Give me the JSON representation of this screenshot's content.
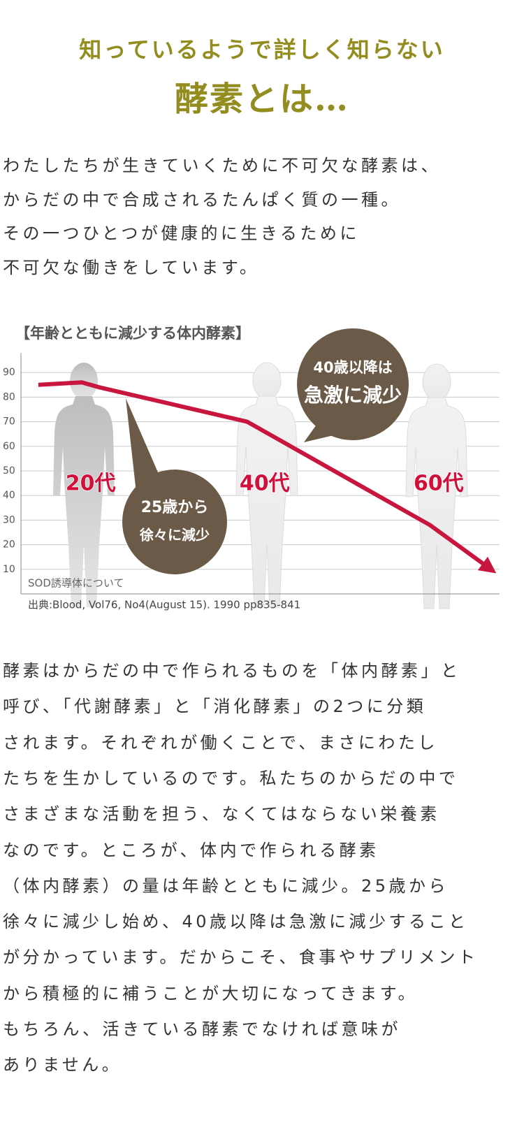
{
  "header": {
    "title": "知っているようで詳しく知らない",
    "subtitle": "酵素とは…"
  },
  "intro": {
    "lines": [
      "わたしたちが生きていくために不可欠な酵素は、",
      "からだの中で合成されるたんぱく質の一種。",
      "その一つひとつが健康的に生きるために",
      "不可欠な働きをしています。"
    ]
  },
  "chart_data": {
    "type": "line",
    "title": "【年齢とともに減少する体内酵素】",
    "x": [
      14,
      19,
      21,
      38,
      39.5,
      59,
      66
    ],
    "xlim": [
      12,
      67
    ],
    "series": [
      {
        "color": "#c8163f",
        "values": [
          85,
          86,
          84,
          70,
          67,
          28,
          10
        ]
      }
    ],
    "ylim": [
      0,
      100
    ],
    "yticks": [
      10,
      20,
      30,
      40,
      50,
      60,
      70,
      80,
      90
    ],
    "grid": true,
    "age_labels": [
      {
        "text": "20代",
        "x": 20
      },
      {
        "text": "40代",
        "x": 40
      },
      {
        "text": "60代",
        "x": 60
      }
    ],
    "callouts": [
      {
        "lines": [
          "25歳から",
          "徐々に減少"
        ]
      },
      {
        "lines": [
          "40歳以降は",
          "急激に減少"
        ]
      }
    ],
    "note": "SOD誘導体について",
    "source": "出典:Blood, Vol76, No4(August 15).  1990 pp835-841"
  },
  "body": {
    "lines": [
      "酵素はからだの中で作られるものを「体内酵素」と",
      "呼び、「代謝酵素」と「消化酵素」の2つに分類",
      "されます。それぞれが働くことで、まさにわたし",
      "たちを生かしているのです。私たちのからだの中で",
      "さまざまな活動を担う、なくてはならない栄養素",
      "なのです。ところが、体内で作られる酵素",
      "（体内酵素）の量は年齢とともに減少。25歳から",
      "徐々に減少し始め、40歳以降は急激に減少すること",
      "が分かっています。だからこそ、食事やサプリメント",
      "から積極的に補うことが大切になってきます。",
      "もちろん、活きている酵素でなければ意味が",
      "ありません。"
    ]
  }
}
